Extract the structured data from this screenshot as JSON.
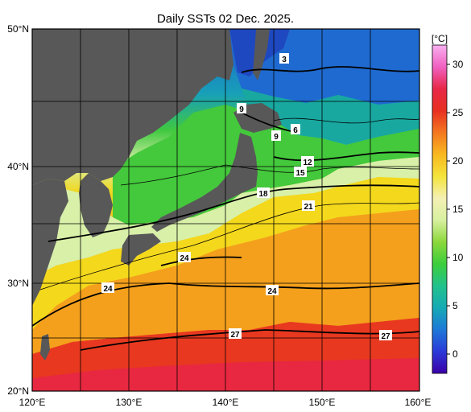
{
  "title": "Daily SSTs 02 Dec. 2025.",
  "lat_labels": [
    "50°N",
    "40°N",
    "30°N",
    "20°N"
  ],
  "lon_labels": [
    "120°E",
    "130°E",
    "140°E",
    "150°E",
    "160°E"
  ],
  "colorbar": {
    "unit": "[°C]",
    "ticks": [
      "30",
      "25",
      "20",
      "15",
      "10",
      "5",
      "0"
    ],
    "tick_values": [
      30,
      25,
      20,
      15,
      10,
      5,
      0
    ],
    "range": [
      -2,
      32
    ],
    "colors": [
      "#3b00a8",
      "#2a3ad8",
      "#1e78d8",
      "#15aab4",
      "#22c28c",
      "#3cce3c",
      "#8cd83c",
      "#d8f0a0",
      "#f4f0b4",
      "#f4e43c",
      "#f8b820",
      "#f47820",
      "#e83020",
      "#e82848",
      "#f060c0",
      "#f8b0f0"
    ]
  },
  "contour_labels": [
    "3",
    "9",
    "9",
    "6",
    "12",
    "15",
    "18",
    "21",
    "24",
    "24",
    "24",
    "27",
    "27"
  ],
  "land_color": "#585858"
}
